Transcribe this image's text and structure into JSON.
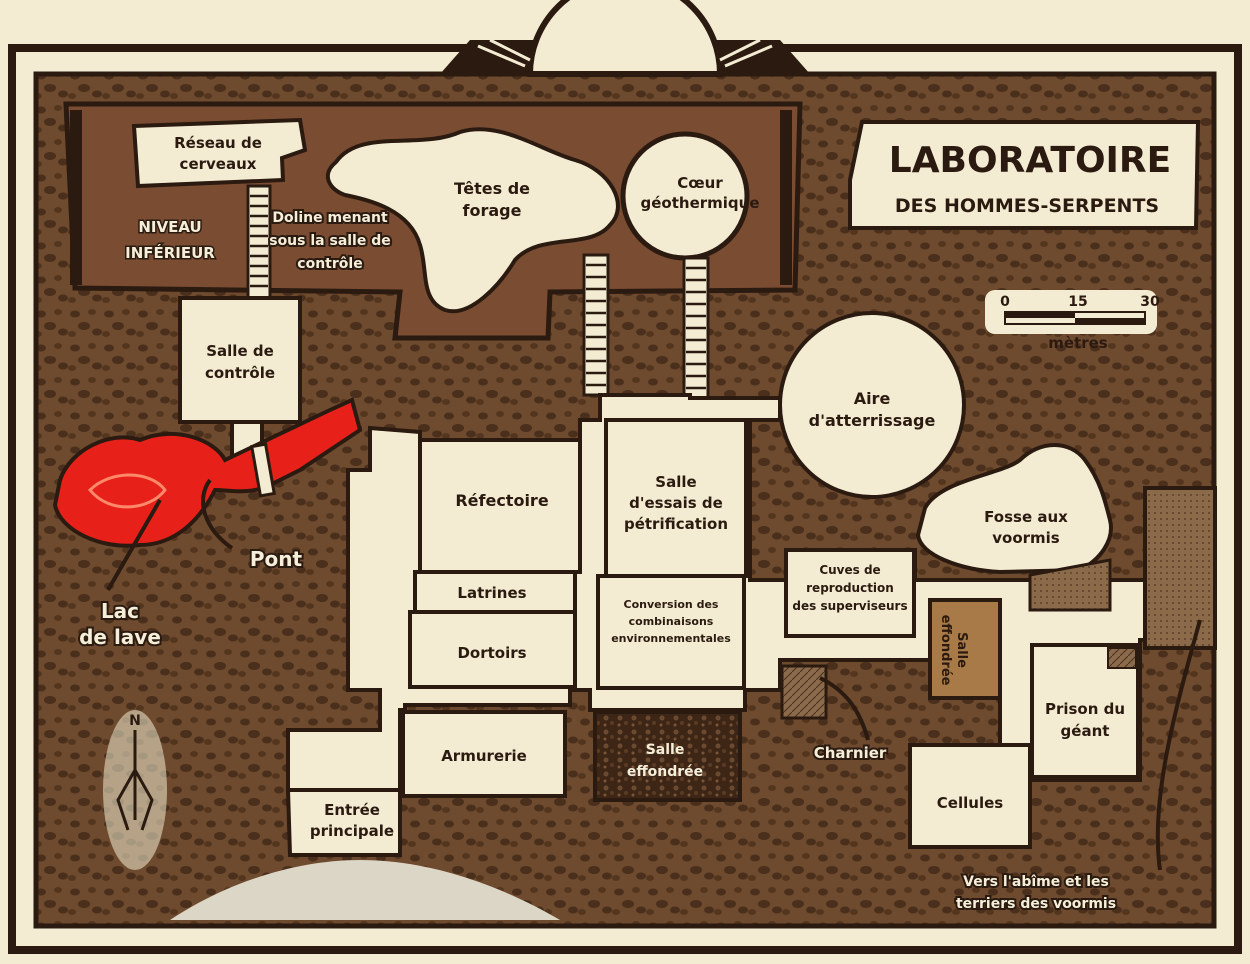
{
  "title": {
    "line1": "LABORATOIRE",
    "line2": "DES HOMMES-SERPENTS"
  },
  "scale": {
    "ticks": [
      "0",
      "15",
      "30"
    ],
    "unit": "mètres"
  },
  "compass": {
    "north": "N"
  },
  "level_label": {
    "line1": "NIVEAU",
    "line2": "INFÉRIEUR"
  },
  "rooms": {
    "reseau": [
      "Réseau de",
      "cerveaux"
    ],
    "tetes": [
      "Têtes de",
      "forage"
    ],
    "coeur": [
      "Cœur",
      "géothermique"
    ],
    "controle": [
      "Salle de",
      "contrôle"
    ],
    "aire": [
      "Aire",
      "d'atterrissage"
    ],
    "refectoire": [
      "Réfectoire"
    ],
    "essais": [
      "Salle",
      "d'essais de",
      "pétrification"
    ],
    "fosse": [
      "Fosse aux",
      "voormis"
    ],
    "cuves": [
      "Cuves de",
      "reproduction",
      "des superviseurs"
    ],
    "latrines": [
      "Latrines"
    ],
    "conversion": [
      "Conversion des",
      "combinaisons",
      "environnementales"
    ],
    "dortoirs": [
      "Dortoirs"
    ],
    "salle_eff_1": [
      "Salle",
      "effondrée"
    ],
    "salle_eff_2": [
      "Salle",
      "effondrée"
    ],
    "prison": [
      "Prison du",
      "géant"
    ],
    "armurerie": [
      "Armurerie"
    ],
    "cellules": [
      "Cellules"
    ],
    "entree": [
      "Entrée",
      "principale"
    ]
  },
  "features": {
    "doline": [
      "Doline menant",
      "sous la salle de",
      "contrôle"
    ],
    "pont": [
      "Pont"
    ],
    "lac": [
      "Lac",
      "de lave"
    ],
    "charnier": [
      "Charnier"
    ],
    "abime": [
      "Vers l'abîme et les",
      "terriers des voormis"
    ]
  },
  "colors": {
    "parchment": "#f3ecd2",
    "rock": "#6e4a2e",
    "dark": "#2b1a10",
    "lava": "#e8201a",
    "upper_level": "#7a4d33"
  }
}
